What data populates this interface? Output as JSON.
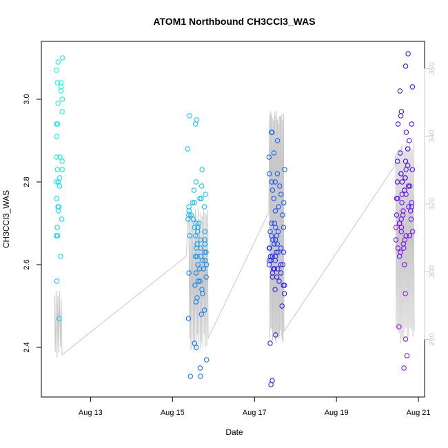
{
  "chart_data": {
    "type": "scatter",
    "title": "ATOM1 Northbound CH3CCl3_WAS",
    "xlabel": "Date",
    "ylabel": "CH3CCl3_WAS",
    "x_ticks": [
      "Aug 13",
      "Aug 15",
      "Aug 17",
      "Aug 19",
      "Aug 21"
    ],
    "x_tick_days": [
      13,
      15,
      17,
      19,
      21
    ],
    "xlim_days": [
      11.8,
      21.15
    ],
    "y_ticks": [
      2.4,
      2.6,
      2.8,
      3.0
    ],
    "ylim": [
      2.28,
      3.14
    ],
    "right_axis_ticks": [
      280,
      300,
      320,
      340,
      360
    ],
    "right_ylim": [
      263,
      368
    ],
    "grid": false,
    "colors": {
      "point_gradient": [
        "#00ffcc",
        "#00ccff",
        "#0066ff",
        "#3300ff",
        "#8800ff"
      ],
      "line": "#c8c8c8"
    },
    "series": [
      {
        "name": "",
        "flight_day": 12.25,
        "values": [
          3.1,
          3.09,
          3.07,
          3.04,
          3.04,
          3.03,
          3.02,
          3.0,
          2.99,
          2.97,
          2.94,
          2.94,
          2.91,
          2.86,
          2.86,
          2.85,
          2.83,
          2.83,
          2.81,
          2.8,
          2.8,
          2.79,
          2.76,
          2.74,
          2.74,
          2.73,
          2.71,
          2.69,
          2.67,
          2.67,
          2.62,
          2.56,
          2.47
        ]
      },
      {
        "name": "",
        "flight_day": 15.6,
        "values": [
          2.96,
          2.95,
          2.94,
          2.88,
          2.83,
          2.8,
          2.79,
          2.78,
          2.77,
          2.76,
          2.76,
          2.75,
          2.75,
          2.74,
          2.74,
          2.73,
          2.72,
          2.72,
          2.71,
          2.71,
          2.7,
          2.7,
          2.69,
          2.69,
          2.68,
          2.68,
          2.67,
          2.67,
          2.66,
          2.66,
          2.65,
          2.65,
          2.64,
          2.64,
          2.63,
          2.63,
          2.62,
          2.62,
          2.62,
          2.61,
          2.61,
          2.6,
          2.6,
          2.59,
          2.59,
          2.58,
          2.58,
          2.57,
          2.56,
          2.56,
          2.55,
          2.54,
          2.53,
          2.52,
          2.51,
          2.49,
          2.48,
          2.47,
          2.41,
          2.4,
          2.37,
          2.35,
          2.33,
          2.33
        ]
      },
      {
        "name": "",
        "flight_day": 17.55,
        "values": [
          2.92,
          2.92,
          2.9,
          2.87,
          2.86,
          2.83,
          2.82,
          2.82,
          2.8,
          2.8,
          2.79,
          2.78,
          2.77,
          2.76,
          2.75,
          2.74,
          2.73,
          2.72,
          2.7,
          2.7,
          2.69,
          2.69,
          2.68,
          2.68,
          2.67,
          2.67,
          2.66,
          2.66,
          2.65,
          2.65,
          2.64,
          2.64,
          2.64,
          2.63,
          2.63,
          2.63,
          2.62,
          2.62,
          2.62,
          2.61,
          2.61,
          2.61,
          2.6,
          2.6,
          2.6,
          2.59,
          2.59,
          2.59,
          2.58,
          2.58,
          2.57,
          2.57,
          2.56,
          2.55,
          2.55,
          2.54,
          2.53,
          2.5,
          2.43,
          2.41,
          2.32,
          2.31
        ]
      },
      {
        "name": "",
        "flight_day": 20.65,
        "values": [
          3.11,
          3.08,
          3.03,
          3.02,
          2.97,
          2.96,
          2.94,
          2.94,
          2.92,
          2.9,
          2.88,
          2.87,
          2.85,
          2.85,
          2.84,
          2.83,
          2.83,
          2.82,
          2.82,
          2.81,
          2.81,
          2.8,
          2.8,
          2.79,
          2.79,
          2.78,
          2.78,
          2.77,
          2.77,
          2.76,
          2.76,
          2.75,
          2.75,
          2.74,
          2.74,
          2.73,
          2.73,
          2.72,
          2.72,
          2.71,
          2.71,
          2.7,
          2.7,
          2.69,
          2.69,
          2.68,
          2.68,
          2.67,
          2.67,
          2.66,
          2.66,
          2.65,
          2.64,
          2.64,
          2.63,
          2.62,
          2.6,
          2.53,
          2.45,
          2.42,
          2.38,
          2.35
        ]
      }
    ]
  }
}
